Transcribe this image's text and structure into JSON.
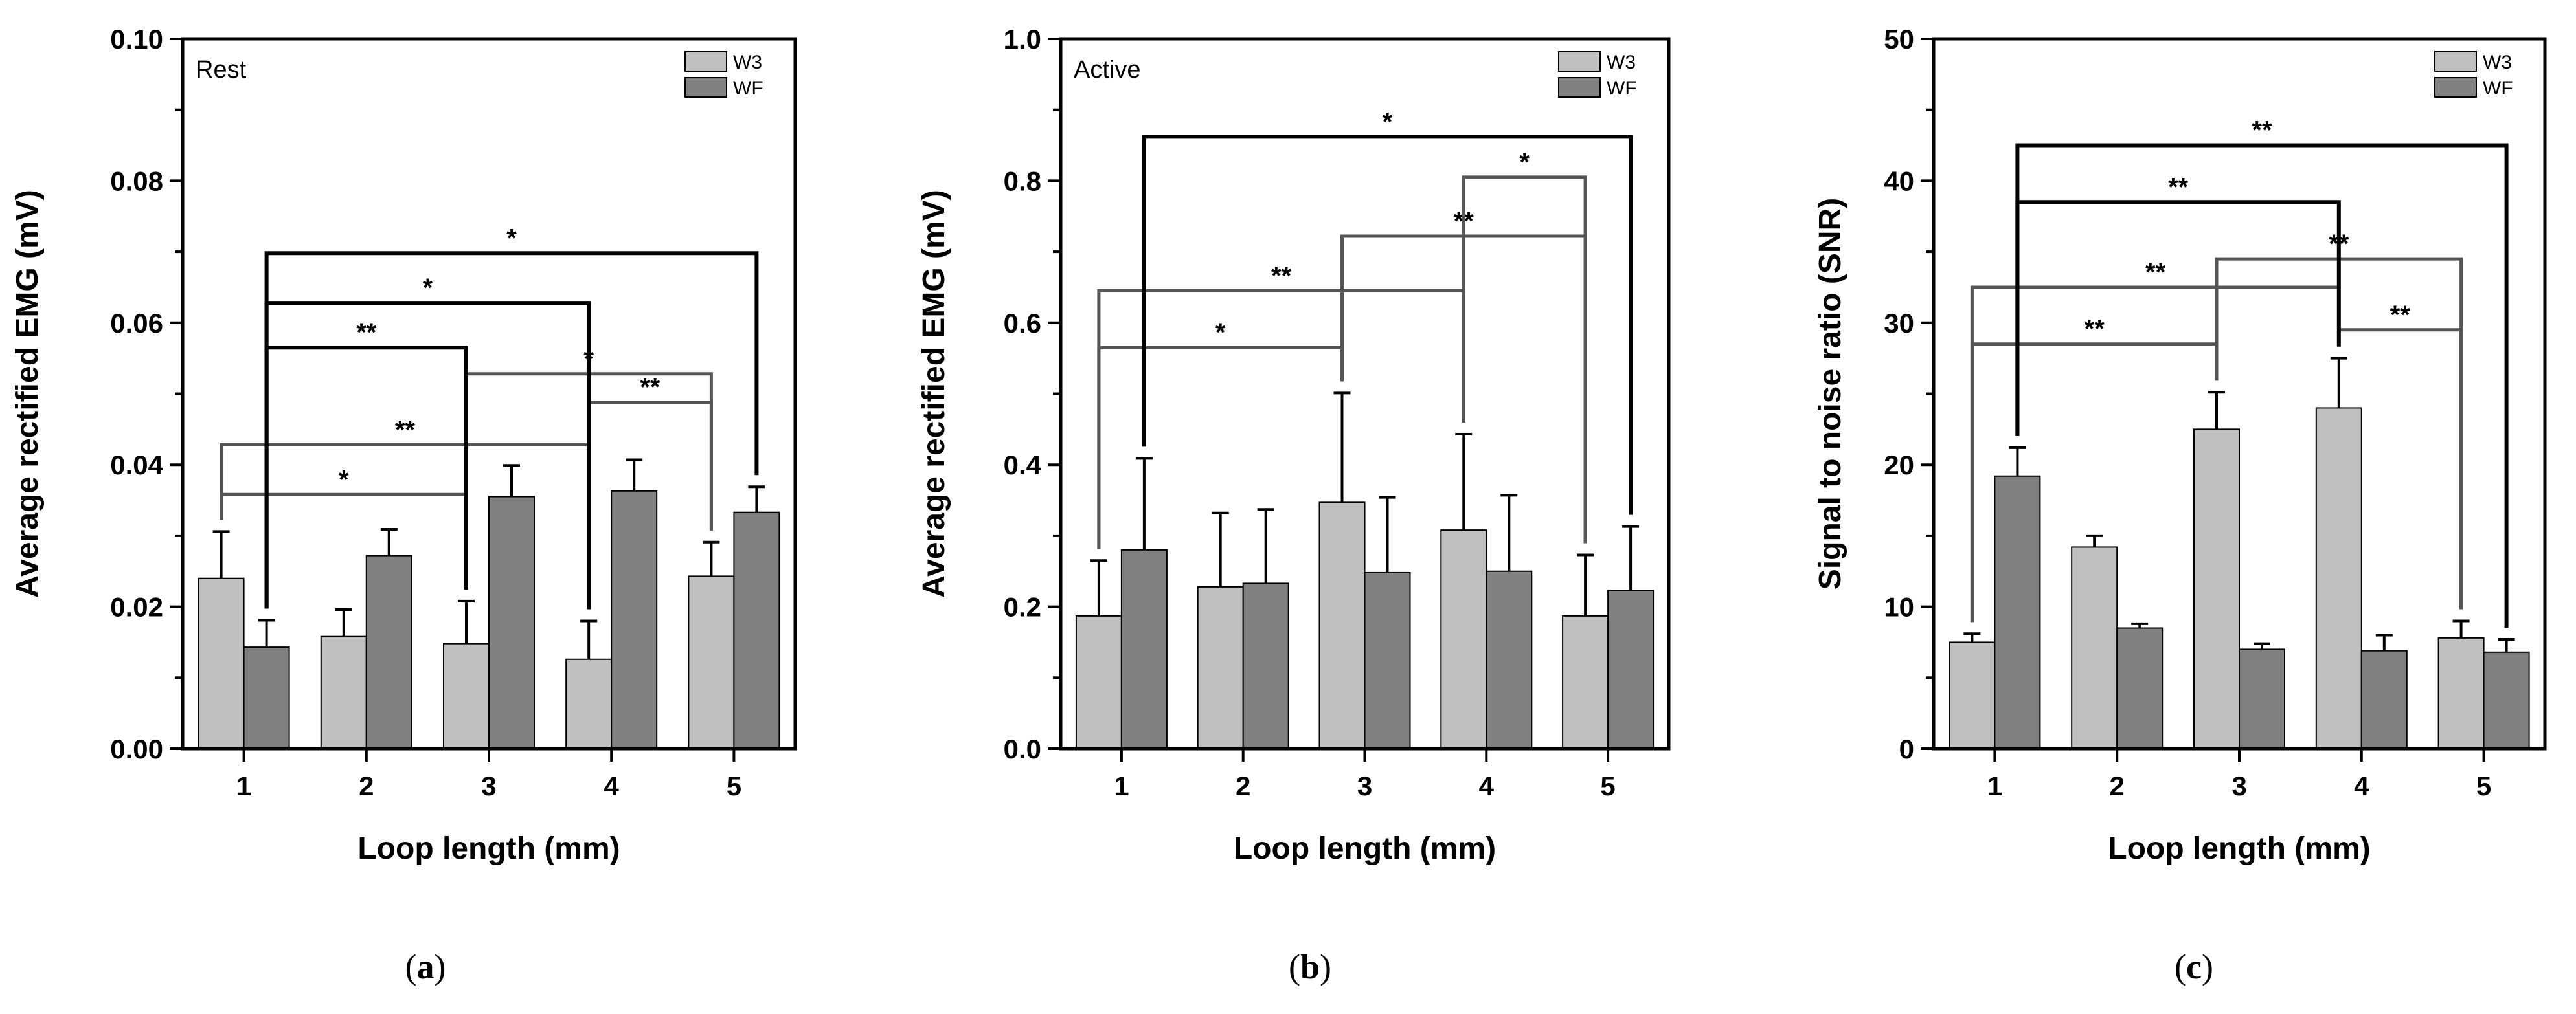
{
  "chart_data": [
    {
      "type": "bar",
      "panel": "a",
      "panel_label": "a",
      "inset_label": "Rest",
      "xlabel": "Loop length (mm)",
      "ylabel": "Average rectified EMG (mV)",
      "categories": [
        "1",
        "2",
        "3",
        "4",
        "5"
      ],
      "ylim": [
        0,
        0.1
      ],
      "yticks": [
        "0.00",
        "0.02",
        "0.04",
        "0.06",
        "0.08",
        "0.10"
      ],
      "ytick_values": [
        0,
        0.02,
        0.04,
        0.06,
        0.08,
        0.1
      ],
      "series": [
        {
          "name": "W3",
          "color": "#c0c0c0",
          "values": [
            0.024,
            0.0158,
            0.0148,
            0.0126,
            0.0243
          ],
          "errors": [
            0.0066,
            0.0038,
            0.006,
            0.0054,
            0.0048
          ]
        },
        {
          "name": "WF",
          "color": "#808080",
          "values": [
            0.0143,
            0.0272,
            0.0355,
            0.0363,
            0.0333
          ],
          "errors": [
            0.0038,
            0.0037,
            0.0044,
            0.0044,
            0.0036
          ]
        }
      ],
      "significance": [
        {
          "from": 1,
          "to": 3,
          "label": "*",
          "level": 0.0358,
          "from_series": "W3",
          "to_series": "W3"
        },
        {
          "from": 1,
          "to": 4,
          "label": "**",
          "level": 0.0428,
          "from_series": "W3",
          "to_series": "W3"
        },
        {
          "from": 3,
          "to": 5,
          "label": "*",
          "level": 0.0528,
          "from_series": "W3",
          "to_series": "W3"
        },
        {
          "from": 4,
          "to": 5,
          "label": "**",
          "level": 0.0488,
          "from_series": "W3",
          "to_series": "W3"
        },
        {
          "from": 1,
          "to": 3,
          "label": "**",
          "level": 0.0565,
          "from_series": "WF",
          "to_series": "W3"
        },
        {
          "from": 1,
          "to": 4,
          "label": "*",
          "level": 0.0628,
          "from_series": "WF",
          "to_series": "W3"
        },
        {
          "from": 1,
          "to": 5,
          "label": "*",
          "level": 0.0698,
          "from_series": "WF",
          "to_series": "WF"
        }
      ]
    },
    {
      "type": "bar",
      "panel": "b",
      "panel_label": "b",
      "inset_label": "Active",
      "xlabel": "Loop length (mm)",
      "ylabel": "Average rectified EMG (mV)",
      "categories": [
        "1",
        "2",
        "3",
        "4",
        "5"
      ],
      "ylim": [
        0,
        1.0
      ],
      "yticks": [
        "0.0",
        "0.2",
        "0.4",
        "0.6",
        "0.8",
        "1.0"
      ],
      "ytick_values": [
        0,
        0.2,
        0.4,
        0.6,
        0.8,
        1.0
      ],
      "series": [
        {
          "name": "W3",
          "color": "#c0c0c0",
          "values": [
            0.187,
            0.228,
            0.347,
            0.308,
            0.187
          ],
          "errors": [
            0.078,
            0.104,
            0.154,
            0.135,
            0.086
          ]
        },
        {
          "name": "WF",
          "color": "#808080",
          "values": [
            0.28,
            0.233,
            0.248,
            0.25,
            0.223
          ],
          "errors": [
            0.129,
            0.104,
            0.106,
            0.107,
            0.09
          ]
        }
      ],
      "significance": [
        {
          "from": 1,
          "to": 3,
          "label": "*",
          "level": 0.565,
          "from_series": "W3",
          "to_series": "W3"
        },
        {
          "from": 1,
          "to": 4,
          "label": "**",
          "level": 0.645,
          "from_series": "W3",
          "to_series": "W3"
        },
        {
          "from": 3,
          "to": 5,
          "label": "**",
          "level": 0.722,
          "from_series": "W3",
          "to_series": "W3"
        },
        {
          "from": 4,
          "to": 5,
          "label": "*",
          "level": 0.805,
          "from_series": "W3",
          "to_series": "W3"
        },
        {
          "from": 1,
          "to": 5,
          "label": "*",
          "level": 0.862,
          "from_series": "WF",
          "to_series": "WF"
        }
      ]
    },
    {
      "type": "bar",
      "panel": "c",
      "panel_label": "c",
      "inset_label": "",
      "xlabel": "Loop length (mm)",
      "ylabel": "Signal to noise ratio (SNR)",
      "categories": [
        "1",
        "2",
        "3",
        "4",
        "5"
      ],
      "ylim": [
        0,
        50
      ],
      "yticks": [
        "0",
        "10",
        "20",
        "30",
        "40",
        "50"
      ],
      "ytick_values": [
        0,
        10,
        20,
        30,
        40,
        50
      ],
      "series": [
        {
          "name": "W3",
          "color": "#c0c0c0",
          "values": [
            7.5,
            14.2,
            22.5,
            24.0,
            7.8
          ],
          "errors": [
            0.6,
            0.8,
            2.6,
            3.5,
            1.2
          ]
        },
        {
          "name": "WF",
          "color": "#808080",
          "values": [
            19.2,
            8.5,
            7.0,
            6.9,
            6.8
          ],
          "errors": [
            2.0,
            0.3,
            0.4,
            1.1,
            0.9
          ]
        }
      ],
      "significance": [
        {
          "from": 1,
          "to": 3,
          "label": "**",
          "level": 28.5,
          "from_series": "W3",
          "to_series": "W3"
        },
        {
          "from": 1,
          "to": 4,
          "label": "**",
          "level": 32.5,
          "from_series": "W3",
          "to_series": "W3"
        },
        {
          "from": 4,
          "to": 5,
          "label": "**",
          "level": 29.5,
          "from_series": "W3",
          "to_series": "W3"
        },
        {
          "from": 3,
          "to": 5,
          "label": "**",
          "level": 34.5,
          "from_series": "W3",
          "to_series": "W3"
        },
        {
          "from": 1,
          "to": 4,
          "label": "**",
          "level": 38.5,
          "from_series": "WF",
          "to_series": "W3"
        },
        {
          "from": 1,
          "to": 5,
          "label": "**",
          "level": 42.5,
          "from_series": "WF",
          "to_series": "WF"
        }
      ]
    }
  ]
}
